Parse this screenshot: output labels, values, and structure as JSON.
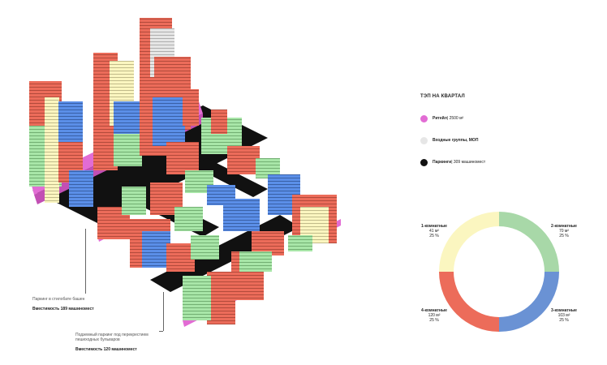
{
  "legend": {
    "title": "ТЭП НА КВАРТАЛ",
    "items": [
      {
        "bold": "Ритейл",
        "rest": " | 2500 м²",
        "color": "#e26cd4"
      },
      {
        "bold": "Входные группы, МОП",
        "rest": "",
        "color": "#e6e6e6"
      },
      {
        "bold": "Паркинги",
        "rest": " | 309 машиномест",
        "color": "#111111"
      }
    ]
  },
  "callouts": {
    "stylobate": {
      "text": "Паркинг в стилобате башен",
      "capacity": "Вместимость 189 машиномест"
    },
    "underground": {
      "text_line1": "Подземный паркинг под перекрестием",
      "text_line2": "пешеходных бульваров",
      "capacity": "Вместимость 120 машиномест"
    }
  },
  "colors": {
    "one_room": "#fbf6c0",
    "two_room": "#a8d8a8",
    "three_room": "#6a92d4",
    "four_room": "#ec6c5a",
    "retail": "#e26cd4",
    "lobby": "#e6e6e6",
    "parking": "#111111"
  },
  "chart_data": {
    "type": "pie",
    "donut": true,
    "categories": [
      "2-комнатные",
      "3-комнатные",
      "4-комнатные",
      "1-комнатные"
    ],
    "series": [
      {
        "values": [
          25,
          25,
          25,
          25
        ]
      }
    ],
    "segments": [
      {
        "name": "2-комнатные",
        "area": "70 м²",
        "share": "25 %",
        "value": 25,
        "color": "#a8d8a8"
      },
      {
        "name": "3-комнатные",
        "area": "103 м²",
        "share": "25 %",
        "value": 25,
        "color": "#6a92d4"
      },
      {
        "name": "4-комнатные",
        "area": "120 м²",
        "share": "25 %",
        "value": 25,
        "color": "#ec6c5a"
      },
      {
        "name": "1-комнатные",
        "area": "41 м²",
        "share": "25 %",
        "value": 25,
        "color": "#fbf6c0"
      }
    ]
  }
}
